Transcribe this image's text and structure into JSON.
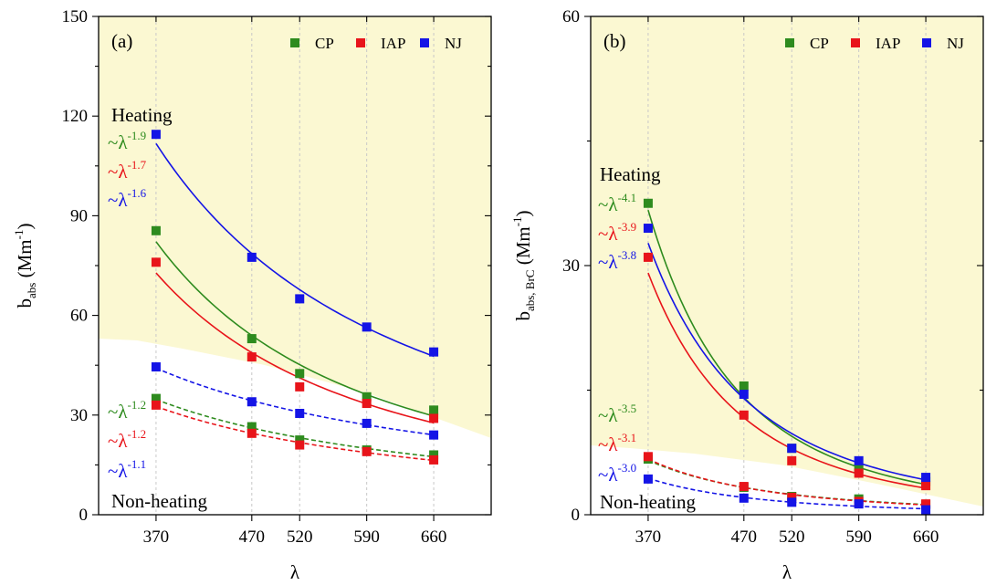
{
  "colors": {
    "CP": "#2e8b1e",
    "IAP": "#e8141a",
    "NJ": "#1414e6",
    "heating_bg": "#fbf8d2"
  },
  "chart_data": [
    {
      "type": "scatter",
      "panel_label": "(a)",
      "xlabel": "λ",
      "ylabel_main": "b",
      "ylabel_sub": "abs",
      "ylabel_unit": " (Mm",
      "ylabel_exp": "-1",
      "ylabel_close": ")",
      "xlim": [
        310,
        720
      ],
      "ylim": [
        0,
        150
      ],
      "xticks": [
        370,
        470,
        520,
        590,
        660
      ],
      "yticks": [
        0,
        30,
        60,
        90,
        120,
        150
      ],
      "legend": [
        "CP",
        "IAP",
        "NJ"
      ],
      "legend_position": "top-right",
      "group_labels": {
        "heating": "Heating",
        "non_heating": "Non-heating"
      },
      "series": [
        {
          "name": "CP",
          "group": "heating",
          "x": [
            370,
            470,
            520,
            590,
            660
          ],
          "y": [
            85.5,
            53,
            42.5,
            35.5,
            31.5
          ],
          "exponent": "-1.9"
        },
        {
          "name": "IAP",
          "group": "heating",
          "x": [
            370,
            470,
            520,
            590,
            660
          ],
          "y": [
            76,
            47.5,
            38.5,
            33.5,
            29
          ],
          "exponent": "-1.7"
        },
        {
          "name": "NJ",
          "group": "heating",
          "x": [
            370,
            470,
            520,
            590,
            660
          ],
          "y": [
            114.5,
            77.5,
            65,
            56.5,
            49
          ],
          "exponent": "-1.6"
        },
        {
          "name": "CP",
          "group": "non_heating",
          "x": [
            370,
            470,
            520,
            590,
            660
          ],
          "y": [
            35,
            26.5,
            22.5,
            19.5,
            18
          ],
          "exponent": "-1.2"
        },
        {
          "name": "IAP",
          "group": "non_heating",
          "x": [
            370,
            470,
            520,
            590,
            660
          ],
          "y": [
            33,
            24.5,
            21,
            19,
            16.5
          ],
          "exponent": "-1.2"
        },
        {
          "name": "NJ",
          "group": "non_heating",
          "x": [
            370,
            470,
            520,
            590,
            660
          ],
          "y": [
            44.5,
            34,
            30.5,
            27.5,
            24
          ],
          "exponent": "-1.1"
        }
      ]
    },
    {
      "type": "scatter",
      "panel_label": "(b)",
      "xlabel": "λ",
      "ylabel_main": "b",
      "ylabel_sub": "abs, BrC",
      "ylabel_unit": " (Mm",
      "ylabel_exp": "-1",
      "ylabel_close": ")",
      "xlim": [
        310,
        720
      ],
      "ylim": [
        0,
        60
      ],
      "xticks": [
        370,
        470,
        520,
        590,
        660
      ],
      "yticks": [
        0,
        30,
        60
      ],
      "legend": [
        "CP",
        "IAP",
        "NJ"
      ],
      "legend_position": "top-right",
      "group_labels": {
        "heating": "Heating",
        "non_heating": "Non-heating"
      },
      "series": [
        {
          "name": "CP",
          "group": "heating",
          "x": [
            370,
            470,
            520,
            590,
            660
          ],
          "y": [
            37.5,
            15.5,
            8,
            5.5,
            4
          ],
          "exponent": "-4.1"
        },
        {
          "name": "IAP",
          "group": "heating",
          "x": [
            370,
            470,
            520,
            590,
            660
          ],
          "y": [
            31,
            12,
            6.5,
            5,
            3.5
          ],
          "exponent": "-3.9"
        },
        {
          "name": "NJ",
          "group": "heating",
          "x": [
            370,
            470,
            520,
            590,
            660
          ],
          "y": [
            34.5,
            14.5,
            8,
            6.5,
            4.5
          ],
          "exponent": "-3.8"
        },
        {
          "name": "CP",
          "group": "non_heating",
          "x": [
            370,
            470,
            520,
            590,
            660
          ],
          "y": [
            6.7,
            3.3,
            2.2,
            1.9,
            1.2
          ],
          "exponent": "-3.5"
        },
        {
          "name": "IAP",
          "group": "non_heating",
          "x": [
            370,
            470,
            520,
            590,
            660
          ],
          "y": [
            7,
            3.4,
            2.1,
            1.6,
            1.3
          ],
          "exponent": "-3.1"
        },
        {
          "name": "NJ",
          "group": "non_heating",
          "x": [
            370,
            470,
            520,
            590,
            660
          ],
          "y": [
            4.3,
            2,
            1.5,
            1.3,
            0.6
          ],
          "exponent": "-3.0"
        }
      ]
    }
  ]
}
